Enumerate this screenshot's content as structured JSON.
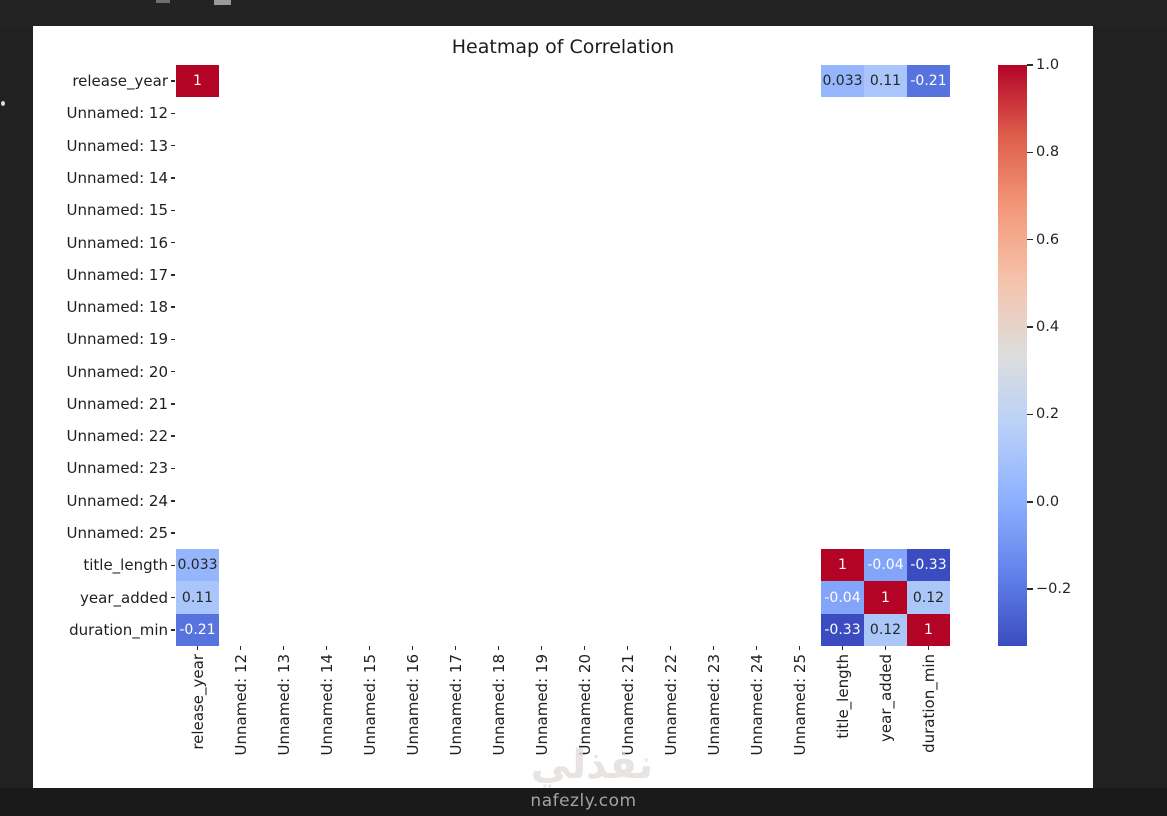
{
  "page": {
    "background": "#212121",
    "figure_background": "#ffffff",
    "watermark": {
      "arabic": "نفذلي",
      "site": "nafezly.com"
    }
  },
  "chart_data": {
    "type": "heatmap",
    "title": "Heatmap of Correlation",
    "colormap": "coolwarm",
    "labels": [
      "release_year",
      "Unnamed: 12",
      "Unnamed: 13",
      "Unnamed: 14",
      "Unnamed: 15",
      "Unnamed: 16",
      "Unnamed: 17",
      "Unnamed: 18",
      "Unnamed: 19",
      "Unnamed: 20",
      "Unnamed: 21",
      "Unnamed: 22",
      "Unnamed: 23",
      "Unnamed: 24",
      "Unnamed: 25",
      "title_length",
      "year_added",
      "duration_min"
    ],
    "cells": [
      {
        "row": "release_year",
        "col": "release_year",
        "value": 1,
        "text": "1"
      },
      {
        "row": "release_year",
        "col": "title_length",
        "value": 0.033,
        "text": "0.033"
      },
      {
        "row": "release_year",
        "col": "year_added",
        "value": 0.11,
        "text": "0.11"
      },
      {
        "row": "release_year",
        "col": "duration_min",
        "value": -0.21,
        "text": "-0.21"
      },
      {
        "row": "title_length",
        "col": "release_year",
        "value": 0.033,
        "text": "0.033"
      },
      {
        "row": "title_length",
        "col": "title_length",
        "value": 1,
        "text": "1"
      },
      {
        "row": "title_length",
        "col": "year_added",
        "value": -0.04,
        "text": "-0.04"
      },
      {
        "row": "title_length",
        "col": "duration_min",
        "value": -0.33,
        "text": "-0.33"
      },
      {
        "row": "year_added",
        "col": "release_year",
        "value": 0.11,
        "text": "0.11"
      },
      {
        "row": "year_added",
        "col": "title_length",
        "value": -0.04,
        "text": "-0.04"
      },
      {
        "row": "year_added",
        "col": "year_added",
        "value": 1,
        "text": "1"
      },
      {
        "row": "year_added",
        "col": "duration_min",
        "value": 0.12,
        "text": "0.12"
      },
      {
        "row": "duration_min",
        "col": "release_year",
        "value": -0.21,
        "text": "-0.21"
      },
      {
        "row": "duration_min",
        "col": "title_length",
        "value": -0.33,
        "text": "-0.33"
      },
      {
        "row": "duration_min",
        "col": "year_added",
        "value": 0.12,
        "text": "0.12"
      },
      {
        "row": "duration_min",
        "col": "duration_min",
        "value": 1,
        "text": "1"
      }
    ],
    "colorbar": {
      "vmin": -0.33,
      "vmax": 1.0,
      "ticks": [
        1.0,
        0.8,
        0.6,
        0.4,
        0.2,
        0.0,
        -0.2
      ],
      "tick_labels": [
        "1.0",
        "0.8",
        "0.6",
        "0.4",
        "0.2",
        "0.0",
        "−0.2"
      ],
      "color_min": "#3b4cc0",
      "color_mid": "#dddddd",
      "color_max": "#b40426"
    }
  }
}
